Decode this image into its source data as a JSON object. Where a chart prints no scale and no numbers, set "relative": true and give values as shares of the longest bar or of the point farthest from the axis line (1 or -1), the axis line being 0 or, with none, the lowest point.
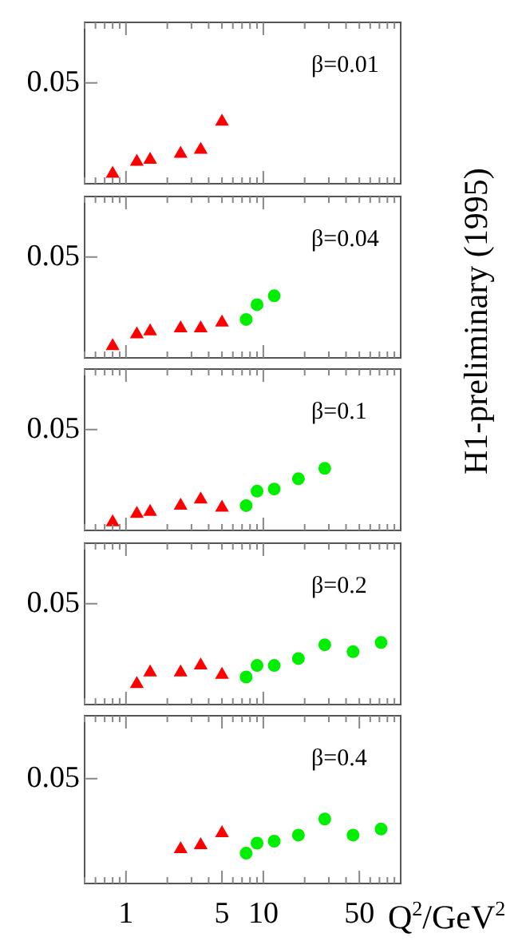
{
  "chart_data": [
    {
      "type": "scatter",
      "relative": true,
      "annotations": [
        "0.05",
        "β=0.01",
        "H1-preliminary (1995)"
      ],
      "xlim": [
        0.5,
        100
      ],
      "log": "x",
      "tick_labels": false,
      "xticks": [
        {
          "value": 0.5,
          "label": null
        },
        {
          "value": 0.6,
          "label": null
        },
        {
          "value": 0.7,
          "label": null
        },
        {
          "value": 0.8,
          "label": null
        },
        {
          "value": 0.9,
          "label": null
        },
        {
          "value": 1,
          "label": null
        },
        {
          "value": 2,
          "label": null
        },
        {
          "value": 3,
          "label": null
        },
        {
          "value": 4,
          "label": null
        },
        {
          "value": 5,
          "label": null
        },
        {
          "value": 6,
          "label": null
        },
        {
          "value": 7,
          "label": null
        },
        {
          "value": 8,
          "label": null
        },
        {
          "value": 9,
          "label": null
        },
        {
          "value": 10,
          "label": null
        },
        {
          "value": 20,
          "label": null
        },
        {
          "value": 30,
          "label": null
        },
        {
          "value": 40,
          "label": null
        },
        {
          "value": 50,
          "label": null
        },
        {
          "value": 60,
          "label": null
        },
        {
          "value": 70,
          "label": null
        },
        {
          "value": 80,
          "label": null
        },
        {
          "value": 90,
          "label": null
        }
      ],
      "series": [
        {
          "color": "#ff0000",
          "marker": "triangle",
          "x": [
            0.8,
            1.2,
            1.5,
            2.5,
            3.5,
            5
          ],
          "values": [
            0.161,
            0.355,
            0.387,
            0.484,
            0.548,
            1
          ]
        }
      ]
    },
    {
      "type": "scatter",
      "relative": true,
      "annotations": [
        "0.05",
        "β=0.04"
      ],
      "xlim": [
        0.5,
        100
      ],
      "log": "x",
      "tick_labels": false,
      "xticks": [
        {
          "value": 0.5,
          "label": null
        },
        {
          "value": 0.6,
          "label": null
        },
        {
          "value": 0.7,
          "label": null
        },
        {
          "value": 0.8,
          "label": null
        },
        {
          "value": 0.9,
          "label": null
        },
        {
          "value": 1,
          "label": null
        },
        {
          "value": 2,
          "label": null
        },
        {
          "value": 3,
          "label": null
        },
        {
          "value": 4,
          "label": null
        },
        {
          "value": 5,
          "label": null
        },
        {
          "value": 6,
          "label": null
        },
        {
          "value": 7,
          "label": null
        },
        {
          "value": 8,
          "label": null
        },
        {
          "value": 9,
          "label": null
        },
        {
          "value": 10,
          "label": null
        },
        {
          "value": 20,
          "label": null
        },
        {
          "value": 30,
          "label": null
        },
        {
          "value": 40,
          "label": null
        },
        {
          "value": 50,
          "label": null
        },
        {
          "value": 60,
          "label": null
        },
        {
          "value": 70,
          "label": null
        },
        {
          "value": 80,
          "label": null
        },
        {
          "value": 90,
          "label": null
        }
      ],
      "series": [
        {
          "color": "#ff0000",
          "marker": "triangle",
          "x": [
            0.8,
            1.2,
            1.5,
            2.5,
            3.5,
            5
          ],
          "values": [
            0.19,
            0.381,
            0.429,
            0.476,
            0.476,
            0.571
          ]
        },
        {
          "color": "#00ee00",
          "marker": "circle",
          "x": [
            7.5,
            9,
            12
          ],
          "values": [
            0.619,
            0.857,
            1
          ]
        }
      ]
    },
    {
      "type": "scatter",
      "relative": true,
      "annotations": [
        "0.05",
        "β=0.1"
      ],
      "xlim": [
        0.5,
        100
      ],
      "log": "x",
      "tick_labels": false,
      "xticks": [
        {
          "value": 0.5,
          "label": null
        },
        {
          "value": 0.6,
          "label": null
        },
        {
          "value": 0.7,
          "label": null
        },
        {
          "value": 0.8,
          "label": null
        },
        {
          "value": 0.9,
          "label": null
        },
        {
          "value": 1,
          "label": null
        },
        {
          "value": 2,
          "label": null
        },
        {
          "value": 3,
          "label": null
        },
        {
          "value": 4,
          "label": null
        },
        {
          "value": 5,
          "label": null
        },
        {
          "value": 6,
          "label": null
        },
        {
          "value": 7,
          "label": null
        },
        {
          "value": 8,
          "label": null
        },
        {
          "value": 9,
          "label": null
        },
        {
          "value": 10,
          "label": null
        },
        {
          "value": 20,
          "label": null
        },
        {
          "value": 30,
          "label": null
        },
        {
          "value": 40,
          "label": null
        },
        {
          "value": 50,
          "label": null
        },
        {
          "value": 60,
          "label": null
        },
        {
          "value": 70,
          "label": null
        },
        {
          "value": 80,
          "label": null
        },
        {
          "value": 90,
          "label": null
        }
      ],
      "series": [
        {
          "color": "#ff0000",
          "marker": "triangle",
          "x": [
            0.8,
            1.2,
            1.5,
            2.5,
            3.5,
            5
          ],
          "values": [
            0.133,
            0.267,
            0.3,
            0.4,
            0.5,
            0.367
          ]
        },
        {
          "color": "#00ee00",
          "marker": "circle",
          "x": [
            7.5,
            9,
            12,
            18,
            28
          ],
          "values": [
            0.4,
            0.633,
            0.667,
            0.833,
            1
          ]
        }
      ]
    },
    {
      "type": "scatter",
      "relative": true,
      "annotations": [
        "0.05",
        "β=0.2"
      ],
      "xlim": [
        0.5,
        100
      ],
      "log": "x",
      "tick_labels": false,
      "xticks": [
        {
          "value": 0.5,
          "label": null
        },
        {
          "value": 0.6,
          "label": null
        },
        {
          "value": 0.7,
          "label": null
        },
        {
          "value": 0.8,
          "label": null
        },
        {
          "value": 0.9,
          "label": null
        },
        {
          "value": 1,
          "label": null
        },
        {
          "value": 2,
          "label": null
        },
        {
          "value": 3,
          "label": null
        },
        {
          "value": 4,
          "label": null
        },
        {
          "value": 5,
          "label": null
        },
        {
          "value": 6,
          "label": null
        },
        {
          "value": 7,
          "label": null
        },
        {
          "value": 8,
          "label": null
        },
        {
          "value": 9,
          "label": null
        },
        {
          "value": 10,
          "label": null
        },
        {
          "value": 20,
          "label": null
        },
        {
          "value": 30,
          "label": null
        },
        {
          "value": 40,
          "label": null
        },
        {
          "value": 50,
          "label": null
        },
        {
          "value": 60,
          "label": null
        },
        {
          "value": 70,
          "label": null
        },
        {
          "value": 80,
          "label": null
        },
        {
          "value": 90,
          "label": null
        }
      ],
      "series": [
        {
          "color": "#ff0000",
          "marker": "triangle",
          "x": [
            1.2,
            1.5,
            2.5,
            3.5,
            5
          ],
          "values": [
            0.333,
            0.519,
            0.519,
            0.63,
            0.481
          ]
        },
        {
          "color": "#00ee00",
          "marker": "circle",
          "x": [
            7.5,
            9,
            12,
            18,
            28,
            45,
            72
          ],
          "values": [
            0.444,
            0.63,
            0.63,
            0.741,
            0.963,
            0.852,
            1
          ]
        }
      ]
    },
    {
      "type": "scatter",
      "relative": true,
      "annotations": [
        "0.05",
        "β=0.4"
      ],
      "xlim": [
        0.5,
        100
      ],
      "log": "x",
      "xlabel": "Q$^{2}$/GeV$^{2}$",
      "xticks": [
        {
          "value": 0.5,
          "label": null
        },
        {
          "value": 0.6,
          "label": null
        },
        {
          "value": 0.7,
          "label": null
        },
        {
          "value": 0.8,
          "label": null
        },
        {
          "value": 0.9,
          "label": null
        },
        1,
        {
          "value": 2,
          "label": null
        },
        {
          "value": 3,
          "label": null
        },
        {
          "value": 4,
          "label": null
        },
        5,
        {
          "value": 6,
          "label": null
        },
        {
          "value": 7,
          "label": null
        },
        {
          "value": 8,
          "label": null
        },
        {
          "value": 9,
          "label": null
        },
        10,
        {
          "value": 20,
          "label": null
        },
        {
          "value": 30,
          "label": null
        },
        {
          "value": 40,
          "label": null
        },
        50,
        {
          "value": 60,
          "label": null
        },
        {
          "value": 70,
          "label": null
        },
        {
          "value": 80,
          "label": null
        },
        {
          "value": 90,
          "label": null
        }
      ],
      "series": [
        {
          "color": "#ff0000",
          "marker": "triangle",
          "x": [
            2.5,
            3.5,
            5
          ],
          "values": [
            0.531,
            0.594,
            0.781
          ]
        },
        {
          "color": "#00ee00",
          "marker": "circle",
          "x": [
            7.5,
            9,
            12,
            18,
            28,
            45,
            72
          ],
          "values": [
            0.469,
            0.625,
            0.656,
            0.75,
            1,
            0.75,
            0.844
          ]
        }
      ]
    }
  ]
}
